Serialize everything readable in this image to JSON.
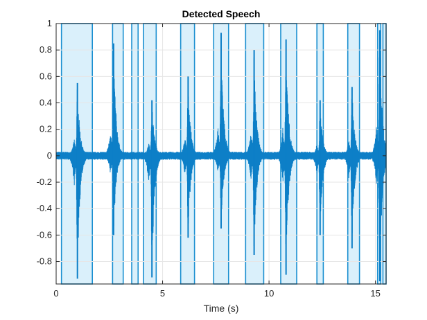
{
  "chart_data": {
    "type": "line",
    "title": "Detected Speech",
    "xlabel": "Time (s)",
    "ylabel": "",
    "xlim": [
      0,
      15.5
    ],
    "ylim": [
      -0.97,
      1
    ],
    "xticks": [
      0,
      5,
      10,
      15
    ],
    "yticks": [
      -0.8,
      -0.6,
      -0.4,
      -0.2,
      0,
      0.2,
      0.4,
      0.6,
      0.8,
      1
    ],
    "grid": true,
    "colors": {
      "signal": "#0d7fc7",
      "region_fill": "#daf0fb",
      "region_edge": "#1a8fd0",
      "grid": "#e6e6e6"
    },
    "speech_regions": [
      [
        0.25,
        1.7
      ],
      [
        2.65,
        3.15
      ],
      [
        3.55,
        3.85
      ],
      [
        4.1,
        4.7
      ],
      [
        5.85,
        6.5
      ],
      [
        7.4,
        8.1
      ],
      [
        8.9,
        9.75
      ],
      [
        10.55,
        11.3
      ],
      [
        12.25,
        12.55
      ],
      [
        13.7,
        14.25
      ],
      [
        15.1,
        15.25
      ],
      [
        15.35,
        15.5
      ]
    ],
    "series": [
      {
        "values_note_x": "bursts: time, positive peak, negative peak",
        "bursts": [
          [
            1.0,
            0.55,
            -0.93
          ],
          [
            2.7,
            0.85,
            -0.6
          ],
          [
            4.5,
            0.42,
            -0.92
          ],
          [
            6.2,
            0.6,
            -0.62
          ],
          [
            7.75,
            0.93,
            -0.55
          ],
          [
            9.3,
            0.8,
            -0.75
          ],
          [
            10.8,
            0.88,
            -0.9
          ],
          [
            12.4,
            0.42,
            -0.6
          ],
          [
            13.9,
            0.52,
            -0.7
          ],
          [
            15.2,
            0.95,
            -0.95
          ]
        ],
        "noise_level": 0.03
      }
    ]
  }
}
